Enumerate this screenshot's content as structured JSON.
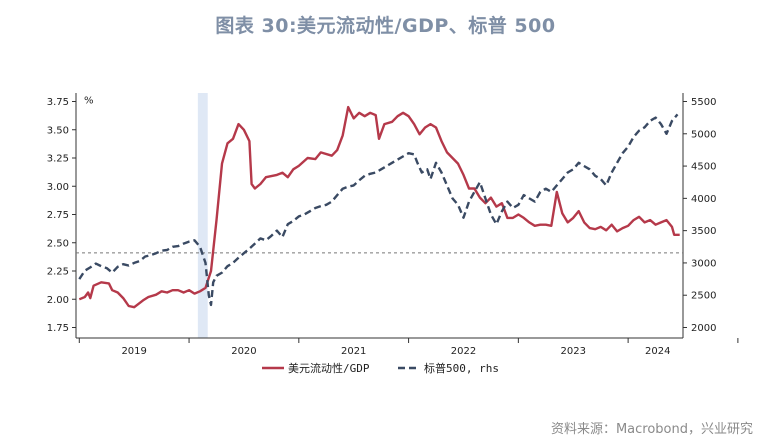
{
  "title": "图表 30:美元流动性/GDP、标普 500",
  "source": "资料来源：Macrobond，兴业研究",
  "chart_data": {
    "type": "line",
    "left_unit": "%",
    "ylim_left": [
      1.75,
      3.75
    ],
    "ylim_right": [
      2000,
      5500
    ],
    "left_ticks": [
      "1.75",
      "2.00",
      "2.25",
      "2.50",
      "2.75",
      "3.00",
      "3.25",
      "3.50",
      "3.75"
    ],
    "right_ticks": [
      "2000",
      "2500",
      "3000",
      "3500",
      "4000",
      "4500",
      "5000",
      "5500"
    ],
    "x_labels": [
      "2019",
      "2020",
      "2021",
      "2022",
      "2023",
      "2024"
    ],
    "xlim": [
      2018.97,
      2024.5
    ],
    "reference_line_left": 2.41,
    "shaded_period": [
      2020.08,
      2020.17
    ],
    "series": [
      {
        "name": "美元流动性/GDP",
        "axis": "left",
        "color": "#b5394a",
        "style": "solid",
        "points": [
          [
            2019.0,
            2.0
          ],
          [
            2019.05,
            2.02
          ],
          [
            2019.08,
            2.06
          ],
          [
            2019.1,
            2.01
          ],
          [
            2019.13,
            2.12
          ],
          [
            2019.2,
            2.15
          ],
          [
            2019.27,
            2.14
          ],
          [
            2019.3,
            2.08
          ],
          [
            2019.35,
            2.06
          ],
          [
            2019.4,
            2.01
          ],
          [
            2019.45,
            1.94
          ],
          [
            2019.5,
            1.93
          ],
          [
            2019.58,
            1.99
          ],
          [
            2019.63,
            2.02
          ],
          [
            2019.7,
            2.04
          ],
          [
            2019.75,
            2.07
          ],
          [
            2019.8,
            2.06
          ],
          [
            2019.85,
            2.08
          ],
          [
            2019.9,
            2.08
          ],
          [
            2019.95,
            2.06
          ],
          [
            2020.0,
            2.08
          ],
          [
            2020.05,
            2.05
          ],
          [
            2020.1,
            2.07
          ],
          [
            2020.15,
            2.1
          ],
          [
            2020.2,
            2.25
          ],
          [
            2020.25,
            2.7
          ],
          [
            2020.3,
            3.2
          ],
          [
            2020.35,
            3.38
          ],
          [
            2020.4,
            3.42
          ],
          [
            2020.45,
            3.55
          ],
          [
            2020.5,
            3.5
          ],
          [
            2020.55,
            3.4
          ],
          [
            2020.57,
            3.02
          ],
          [
            2020.6,
            2.98
          ],
          [
            2020.65,
            3.02
          ],
          [
            2020.7,
            3.08
          ],
          [
            2020.8,
            3.1
          ],
          [
            2020.85,
            3.12
          ],
          [
            2020.9,
            3.08
          ],
          [
            2020.95,
            3.15
          ],
          [
            2021.0,
            3.18
          ],
          [
            2021.08,
            3.25
          ],
          [
            2021.15,
            3.24
          ],
          [
            2021.2,
            3.3
          ],
          [
            2021.3,
            3.27
          ],
          [
            2021.35,
            3.32
          ],
          [
            2021.4,
            3.45
          ],
          [
            2021.45,
            3.7
          ],
          [
            2021.5,
            3.6
          ],
          [
            2021.55,
            3.65
          ],
          [
            2021.6,
            3.62
          ],
          [
            2021.65,
            3.65
          ],
          [
            2021.7,
            3.63
          ],
          [
            2021.73,
            3.42
          ],
          [
            2021.78,
            3.55
          ],
          [
            2021.85,
            3.57
          ],
          [
            2021.9,
            3.62
          ],
          [
            2021.95,
            3.65
          ],
          [
            2022.0,
            3.62
          ],
          [
            2022.05,
            3.55
          ],
          [
            2022.1,
            3.46
          ],
          [
            2022.15,
            3.52
          ],
          [
            2022.2,
            3.55
          ],
          [
            2022.25,
            3.52
          ],
          [
            2022.3,
            3.4
          ],
          [
            2022.35,
            3.3
          ],
          [
            2022.4,
            3.25
          ],
          [
            2022.45,
            3.2
          ],
          [
            2022.5,
            3.1
          ],
          [
            2022.55,
            2.98
          ],
          [
            2022.6,
            2.98
          ],
          [
            2022.65,
            2.9
          ],
          [
            2022.7,
            2.85
          ],
          [
            2022.75,
            2.9
          ],
          [
            2022.8,
            2.82
          ],
          [
            2022.85,
            2.85
          ],
          [
            2022.9,
            2.72
          ],
          [
            2022.95,
            2.72
          ],
          [
            2023.0,
            2.75
          ],
          [
            2023.05,
            2.72
          ],
          [
            2023.1,
            2.68
          ],
          [
            2023.15,
            2.65
          ],
          [
            2023.2,
            2.66
          ],
          [
            2023.25,
            2.66
          ],
          [
            2023.3,
            2.65
          ],
          [
            2023.35,
            2.95
          ],
          [
            2023.4,
            2.76
          ],
          [
            2023.45,
            2.68
          ],
          [
            2023.5,
            2.72
          ],
          [
            2023.55,
            2.78
          ],
          [
            2023.6,
            2.68
          ],
          [
            2023.65,
            2.63
          ],
          [
            2023.7,
            2.62
          ],
          [
            2023.75,
            2.64
          ],
          [
            2023.8,
            2.61
          ],
          [
            2023.85,
            2.66
          ],
          [
            2023.9,
            2.6
          ],
          [
            2023.95,
            2.63
          ],
          [
            2024.0,
            2.65
          ],
          [
            2024.05,
            2.7
          ],
          [
            2024.1,
            2.73
          ],
          [
            2024.15,
            2.68
          ],
          [
            2024.2,
            2.7
          ],
          [
            2024.25,
            2.66
          ],
          [
            2024.3,
            2.68
          ],
          [
            2024.35,
            2.7
          ],
          [
            2024.4,
            2.64
          ],
          [
            2024.42,
            2.57
          ],
          [
            2024.47,
            2.57
          ]
        ]
      },
      {
        "name": "标普500, rhs",
        "axis": "right",
        "color": "#3a4a63",
        "style": "dashed",
        "points": [
          [
            2019.0,
            2750
          ],
          [
            2019.05,
            2880
          ],
          [
            2019.1,
            2930
          ],
          [
            2019.15,
            2990
          ],
          [
            2019.2,
            2950
          ],
          [
            2019.25,
            2920
          ],
          [
            2019.3,
            2850
          ],
          [
            2019.35,
            2940
          ],
          [
            2019.4,
            2980
          ],
          [
            2019.45,
            2960
          ],
          [
            2019.5,
            3000
          ],
          [
            2019.55,
            3030
          ],
          [
            2019.6,
            3100
          ],
          [
            2019.65,
            3120
          ],
          [
            2019.7,
            3150
          ],
          [
            2019.75,
            3190
          ],
          [
            2019.8,
            3200
          ],
          [
            2019.85,
            3250
          ],
          [
            2019.9,
            3260
          ],
          [
            2019.95,
            3300
          ],
          [
            2020.0,
            3330
          ],
          [
            2020.05,
            3350
          ],
          [
            2020.1,
            3250
          ],
          [
            2020.12,
            3150
          ],
          [
            2020.15,
            3000
          ],
          [
            2020.18,
            2500
          ],
          [
            2020.2,
            2350
          ],
          [
            2020.22,
            2700
          ],
          [
            2020.25,
            2800
          ],
          [
            2020.3,
            2850
          ],
          [
            2020.35,
            2950
          ],
          [
            2020.4,
            3000
          ],
          [
            2020.45,
            3080
          ],
          [
            2020.5,
            3150
          ],
          [
            2020.55,
            3220
          ],
          [
            2020.6,
            3300
          ],
          [
            2020.65,
            3380
          ],
          [
            2020.7,
            3350
          ],
          [
            2020.75,
            3420
          ],
          [
            2020.8,
            3500
          ],
          [
            2020.85,
            3400
          ],
          [
            2020.9,
            3600
          ],
          [
            2020.95,
            3650
          ],
          [
            2021.0,
            3720
          ],
          [
            2021.05,
            3750
          ],
          [
            2021.1,
            3800
          ],
          [
            2021.15,
            3850
          ],
          [
            2021.2,
            3880
          ],
          [
            2021.25,
            3900
          ],
          [
            2021.3,
            3950
          ],
          [
            2021.35,
            4050
          ],
          [
            2021.4,
            4150
          ],
          [
            2021.45,
            4180
          ],
          [
            2021.5,
            4200
          ],
          [
            2021.55,
            4280
          ],
          [
            2021.6,
            4350
          ],
          [
            2021.65,
            4380
          ],
          [
            2021.7,
            4400
          ],
          [
            2021.75,
            4450
          ],
          [
            2021.8,
            4500
          ],
          [
            2021.85,
            4550
          ],
          [
            2021.9,
            4600
          ],
          [
            2021.95,
            4650
          ],
          [
            2022.0,
            4700
          ],
          [
            2022.05,
            4680
          ],
          [
            2022.08,
            4550
          ],
          [
            2022.12,
            4400
          ],
          [
            2022.17,
            4450
          ],
          [
            2022.2,
            4300
          ],
          [
            2022.25,
            4550
          ],
          [
            2022.3,
            4400
          ],
          [
            2022.35,
            4200
          ],
          [
            2022.4,
            4000
          ],
          [
            2022.45,
            3900
          ],
          [
            2022.5,
            3700
          ],
          [
            2022.55,
            3950
          ],
          [
            2022.6,
            4100
          ],
          [
            2022.65,
            4250
          ],
          [
            2022.7,
            4000
          ],
          [
            2022.75,
            3750
          ],
          [
            2022.8,
            3600
          ],
          [
            2022.85,
            3800
          ],
          [
            2022.9,
            3950
          ],
          [
            2022.95,
            3850
          ],
          [
            2023.0,
            3900
          ],
          [
            2023.05,
            4050
          ],
          [
            2023.1,
            4000
          ],
          [
            2023.15,
            3950
          ],
          [
            2023.2,
            4100
          ],
          [
            2023.25,
            4150
          ],
          [
            2023.3,
            4100
          ],
          [
            2023.35,
            4200
          ],
          [
            2023.4,
            4300
          ],
          [
            2023.45,
            4400
          ],
          [
            2023.5,
            4450
          ],
          [
            2023.55,
            4550
          ],
          [
            2023.6,
            4500
          ],
          [
            2023.65,
            4450
          ],
          [
            2023.7,
            4350
          ],
          [
            2023.75,
            4300
          ],
          [
            2023.8,
            4200
          ],
          [
            2023.85,
            4400
          ],
          [
            2023.9,
            4550
          ],
          [
            2023.95,
            4700
          ],
          [
            2024.0,
            4800
          ],
          [
            2024.05,
            4950
          ],
          [
            2024.1,
            5050
          ],
          [
            2024.15,
            5100
          ],
          [
            2024.2,
            5200
          ],
          [
            2024.25,
            5250
          ],
          [
            2024.3,
            5150
          ],
          [
            2024.35,
            5000
          ],
          [
            2024.4,
            5200
          ],
          [
            2024.45,
            5300
          ]
        ]
      }
    ]
  }
}
